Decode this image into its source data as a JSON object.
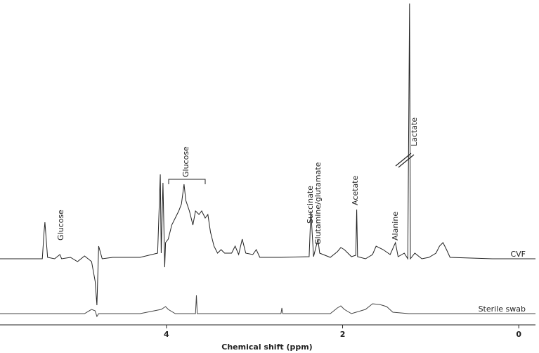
{
  "chart_data": {
    "type": "line",
    "x_label": "Chemical shift (ppm)",
    "xlim": [
      5.89,
      -0.19
    ],
    "xticks": [
      4,
      2,
      0
    ],
    "ylim": [
      0,
      462
    ],
    "series": [
      {
        "name": "CVF",
        "color": "#222222",
        "x": [
          5.89,
          5.41,
          5.39,
          5.38,
          5.35,
          5.27,
          5.21,
          5.19,
          5.09,
          5.01,
          4.93,
          4.85,
          4.81,
          4.79,
          4.77,
          4.73,
          4.61,
          4.3,
          4.1,
          4.07,
          4.06,
          4.04,
          4.02,
          4.01,
          3.98,
          3.94,
          3.9,
          3.86,
          3.83,
          3.8,
          3.78,
          3.74,
          3.7,
          3.67,
          3.63,
          3.6,
          3.56,
          3.53,
          3.5,
          3.46,
          3.42,
          3.38,
          3.34,
          3.26,
          3.22,
          3.18,
          3.14,
          3.1,
          3.02,
          2.98,
          2.94,
          2.7,
          2.38,
          2.36,
          2.33,
          2.28,
          2.26,
          2.14,
          2.06,
          2.02,
          1.98,
          1.9,
          1.85,
          1.84,
          1.83,
          1.74,
          1.66,
          1.62,
          1.54,
          1.46,
          1.4,
          1.37,
          1.3,
          1.26,
          1.24,
          1.23,
          1.18,
          1.1,
          1.02,
          0.94,
          0.9,
          0.86,
          0.82,
          0.78,
          0.3,
          -0.19
        ],
        "values": [
          94,
          94,
          132,
          146,
          96,
          94,
          100,
          94,
          96,
          90,
          98,
          90,
          62,
          28,
          112,
          94,
          96,
          96,
          102,
          214,
          102,
          202,
          82,
          117,
          122,
          142,
          152,
          162,
          172,
          200,
          177,
          162,
          142,
          162,
          157,
          162,
          152,
          157,
          132,
          112,
          102,
          107,
          102,
          102,
          112,
          100,
          122,
          102,
          100,
          107,
          96,
          96,
          97,
          162,
          97,
          122,
          102,
          96,
          104,
          110,
          107,
          97,
          99,
          164,
          97,
          94,
          100,
          112,
          107,
          100,
          117,
          97,
          102,
          94,
          457,
          94,
          102,
          94,
          96,
          102,
          112,
          117,
          107,
          96,
          94,
          94
        ]
      },
      {
        "name": "Sterile swab",
        "color": "#444444",
        "x": [
          5.89,
          4.93,
          4.85,
          4.81,
          4.79,
          4.77,
          4.3,
          4.06,
          4.01,
          3.98,
          3.9,
          3.67,
          3.66,
          3.65,
          2.7,
          2.69,
          2.68,
          2.14,
          2.06,
          2.02,
          1.98,
          1.9,
          1.74,
          1.66,
          1.58,
          1.5,
          1.43,
          1.25,
          -0.19
        ],
        "values": [
          16,
          16,
          22,
          20,
          12,
          16,
          16,
          22,
          26,
          22,
          16,
          16,
          42,
          16,
          16,
          24,
          16,
          16,
          24,
          27,
          22,
          16,
          22,
          30,
          29,
          26,
          18,
          16,
          16
        ]
      }
    ],
    "annotations": [
      "Glucose",
      "Glucose",
      "Succinate",
      "Glutamine/glutamate",
      "Acetate",
      "Alanine",
      "Lactate"
    ]
  }
}
